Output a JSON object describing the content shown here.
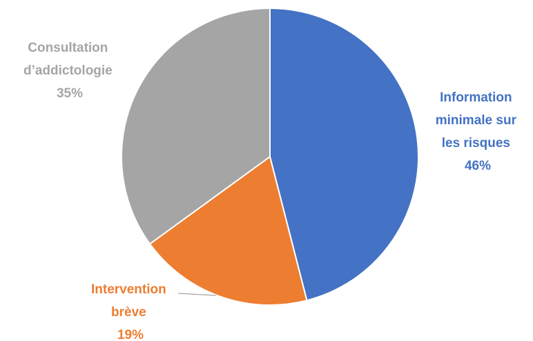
{
  "chart_data": {
    "type": "pie",
    "title": "",
    "legend": "none",
    "start_angle_deg": 0,
    "direction": "clockwise",
    "slices": [
      {
        "name": "Information minimale sur les risques",
        "label_lines": [
          "Information",
          "minimale sur",
          "les risques"
        ],
        "value": 46,
        "value_label": "46%",
        "color": "#4472C4"
      },
      {
        "name": "Intervention brève",
        "label_lines": [
          "Intervention",
          "brève"
        ],
        "value": 19,
        "value_label": "19%",
        "color": "#ED7D31"
      },
      {
        "name": "Consultation d’addictologie",
        "label_lines": [
          "Consultation",
          "d’addictologie"
        ],
        "value": 35,
        "value_label": "35%",
        "color": "#A5A5A5"
      }
    ]
  }
}
